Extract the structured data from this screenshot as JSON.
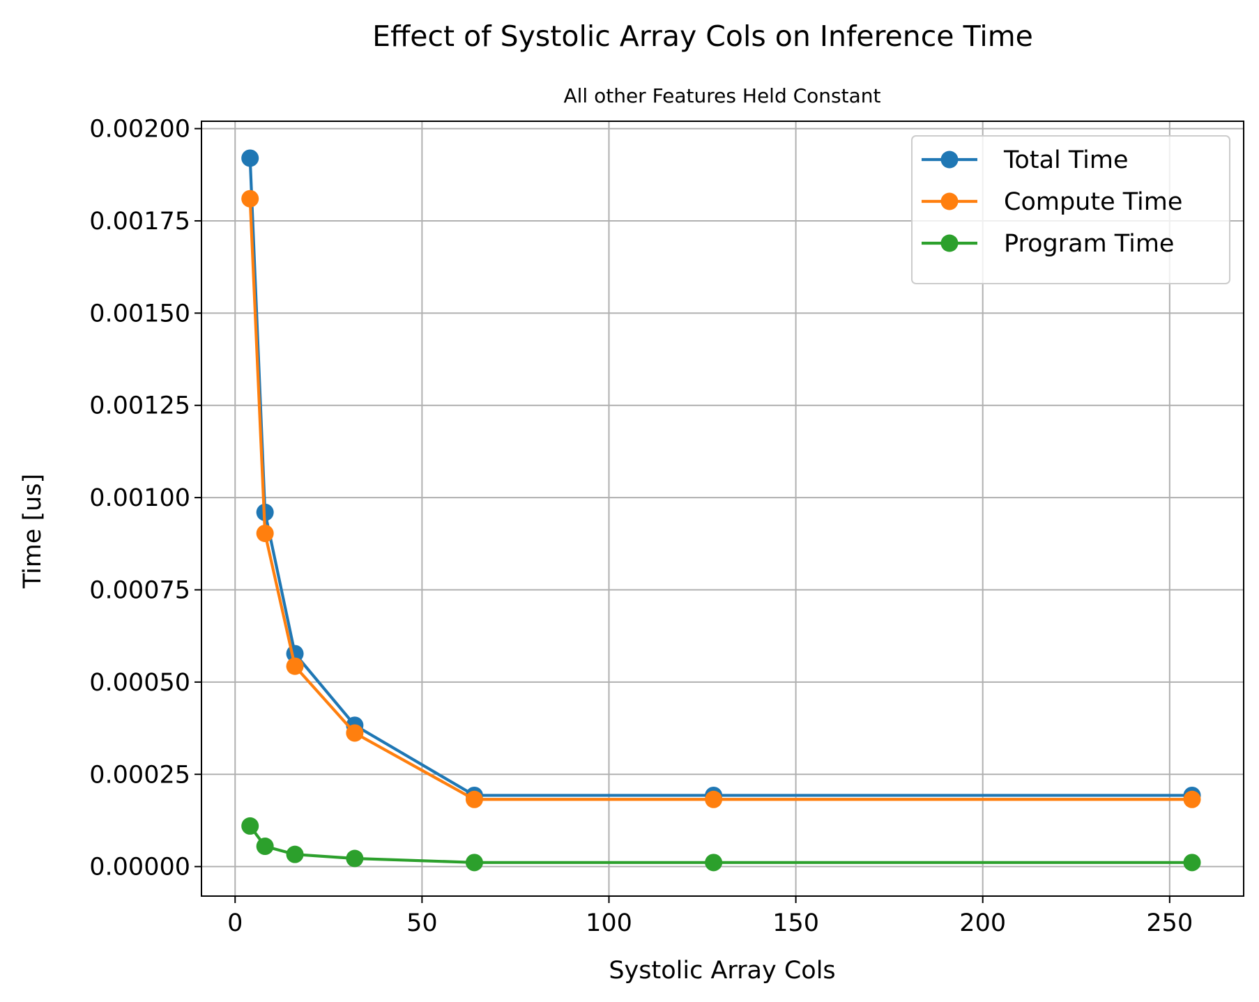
{
  "chart_data": {
    "type": "line",
    "title": "Effect of Systolic Array Cols on Inference Time",
    "subtitle": "All other Features Held Constant",
    "xlabel": "Systolic Array Cols",
    "ylabel": "Time [us]",
    "xlim": [
      -9,
      269.8
    ],
    "ylim": [
      -8e-05,
      0.00202
    ],
    "xticks": [
      0,
      50,
      100,
      150,
      200,
      250
    ],
    "xtick_labels": [
      "0",
      "50",
      "100",
      "150",
      "200",
      "250"
    ],
    "yticks": [
      0,
      0.00025,
      0.0005,
      0.00075,
      0.001,
      0.00125,
      0.0015,
      0.00175,
      0.002
    ],
    "ytick_labels": [
      "0.00000",
      "0.00025",
      "0.00050",
      "0.00075",
      "0.00100",
      "0.00125",
      "0.00150",
      "0.00175",
      "0.00200"
    ],
    "grid": true,
    "legend_position": "top-right",
    "x": [
      4,
      8,
      16,
      32,
      64,
      128,
      256
    ],
    "series": [
      {
        "name": "Total Time",
        "color": "#1f77b4",
        "values": [
          0.00192,
          0.00096,
          0.000577,
          0.000383,
          0.000193,
          0.000193,
          0.000193
        ]
      },
      {
        "name": "Compute Time",
        "color": "#ff7f0e",
        "values": [
          0.00181,
          0.000903,
          0.000543,
          0.000362,
          0.000182,
          0.000182,
          0.000182
        ]
      },
      {
        "name": "Program Time",
        "color": "#2ca02c",
        "values": [
          0.00011,
          5.5e-05,
          3.3e-05,
          2.2e-05,
          1.1e-05,
          1.1e-05,
          1.1e-05
        ]
      }
    ]
  }
}
